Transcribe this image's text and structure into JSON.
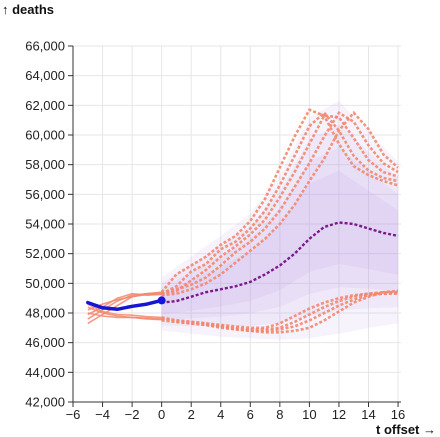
{
  "chart_data": {
    "type": "line",
    "ylabel": "↑ deaths",
    "xlabel": "t offset →",
    "xlim": [
      -6,
      16.2
    ],
    "ylim": [
      42000,
      66000
    ],
    "x_ticks": [
      -6,
      -4,
      -2,
      0,
      2,
      4,
      6,
      8,
      10,
      12,
      14,
      16
    ],
    "x_tick_labels": [
      "−6",
      "−4",
      "−2",
      "0",
      "2",
      "4",
      "6",
      "8",
      "10",
      "12",
      "14",
      "16"
    ],
    "y_ticks": [
      42000,
      44000,
      46000,
      48000,
      50000,
      52000,
      54000,
      56000,
      58000,
      60000,
      62000,
      64000,
      66000
    ],
    "y_tick_labels": [
      "42,000",
      "44,000",
      "46,000",
      "48,000",
      "50,000",
      "52,000",
      "54,000",
      "56,000",
      "58,000",
      "60,000",
      "62,000",
      "64,000",
      "66,000"
    ],
    "grid": true,
    "colors": {
      "observed": "#1515d6",
      "median": "#7a1a8c",
      "samples": "#f2876e",
      "band": "#b28de6"
    },
    "observed": {
      "x": [
        -5,
        -4,
        -3,
        -2,
        -1,
        0
      ],
      "y": [
        48700,
        48350,
        48250,
        48450,
        48600,
        48850
      ]
    },
    "history_samples": [
      {
        "x": [
          -5,
          -4,
          -3,
          -2,
          -1,
          0
        ],
        "y": [
          47300,
          47900,
          48500,
          49100,
          49300,
          49400
        ]
      },
      {
        "x": [
          -5,
          -4,
          -3,
          -2,
          -1,
          0
        ],
        "y": [
          47600,
          48200,
          48800,
          49200,
          49300,
          49350
        ]
      },
      {
        "x": [
          -5,
          -4,
          -3,
          -2,
          -1,
          0
        ],
        "y": [
          47900,
          48400,
          49000,
          49300,
          49200,
          49250
        ]
      },
      {
        "x": [
          -5,
          -4,
          -3,
          -2,
          -1,
          0
        ],
        "y": [
          48200,
          48600,
          48900,
          49100,
          49250,
          49300
        ]
      },
      {
        "x": [
          -5,
          -4,
          -3,
          -2,
          -1,
          0
        ],
        "y": [
          48000,
          47800,
          47700,
          47700,
          47600,
          47550
        ]
      },
      {
        "x": [
          -5,
          -4,
          -3,
          -2,
          -1,
          0
        ],
        "y": [
          48400,
          48000,
          47800,
          47700,
          47650,
          47600
        ]
      },
      {
        "x": [
          -5,
          -4,
          -3,
          -2,
          -1,
          0
        ],
        "y": [
          48600,
          48100,
          47900,
          47850,
          47750,
          47700
        ]
      }
    ],
    "median": {
      "x": [
        0,
        1,
        2,
        3,
        4,
        5,
        6,
        7,
        8,
        9,
        10,
        11,
        12,
        13,
        14,
        15,
        16
      ],
      "y": [
        48700,
        48800,
        49100,
        49400,
        49600,
        49800,
        50100,
        50600,
        51200,
        52000,
        53000,
        53800,
        54100,
        54000,
        53700,
        53400,
        53200
      ]
    },
    "forecast_samples": [
      {
        "x": [
          0,
          1,
          2,
          3,
          4,
          5,
          6,
          7,
          8,
          9,
          10,
          11,
          12,
          13,
          14,
          15,
          16
        ],
        "y": [
          49400,
          50600,
          51200,
          51800,
          52600,
          53200,
          54200,
          55700,
          57800,
          59900,
          61700,
          61300,
          59400,
          57900,
          57300,
          56900,
          56600
        ]
      },
      {
        "x": [
          0,
          1,
          2,
          3,
          4,
          5,
          6,
          7,
          8,
          9,
          10,
          11,
          12,
          13,
          14,
          15,
          16
        ],
        "y": [
          49300,
          49800,
          50800,
          51300,
          52300,
          52800,
          53700,
          54900,
          56600,
          58600,
          60600,
          61500,
          60300,
          58600,
          57600,
          57100,
          56900
        ]
      },
      {
        "x": [
          0,
          1,
          2,
          3,
          4,
          5,
          6,
          7,
          8,
          9,
          10,
          11,
          12,
          13,
          14,
          15,
          16
        ],
        "y": [
          49200,
          49500,
          50200,
          50900,
          51800,
          52500,
          53300,
          54300,
          55800,
          57500,
          59400,
          61300,
          61200,
          59800,
          58300,
          57500,
          57200
        ]
      },
      {
        "x": [
          0,
          1,
          2,
          3,
          4,
          5,
          6,
          7,
          8,
          9,
          10,
          11,
          12,
          13,
          14,
          15,
          16
        ],
        "y": [
          49300,
          49600,
          49900,
          50400,
          51200,
          52100,
          52800,
          53700,
          54900,
          56500,
          58100,
          59900,
          61500,
          60900,
          59300,
          58100,
          57500
        ]
      },
      {
        "x": [
          0,
          1,
          2,
          3,
          4,
          5,
          6,
          7,
          8,
          9,
          10,
          11,
          12,
          13,
          14,
          15,
          16
        ],
        "y": [
          49200,
          49300,
          49600,
          50000,
          50600,
          51400,
          52200,
          53000,
          54000,
          55300,
          56900,
          58400,
          60300,
          61500,
          60400,
          58700,
          57800
        ]
      },
      {
        "x": [
          0,
          1,
          2,
          3,
          4,
          5,
          6,
          7,
          8,
          9,
          10,
          11,
          12,
          13,
          14,
          15,
          16
        ],
        "y": [
          47600,
          47500,
          47400,
          47300,
          47200,
          47100,
          47000,
          47000,
          47300,
          47800,
          48300,
          48700,
          49000,
          49200,
          49300,
          49400,
          49400
        ]
      },
      {
        "x": [
          0,
          1,
          2,
          3,
          4,
          5,
          6,
          7,
          8,
          9,
          10,
          11,
          12,
          13,
          14,
          15,
          16
        ],
        "y": [
          47700,
          47500,
          47400,
          47300,
          47100,
          47000,
          46900,
          46900,
          47000,
          47400,
          47900,
          48400,
          48800,
          49100,
          49300,
          49300,
          49300
        ]
      },
      {
        "x": [
          0,
          1,
          2,
          3,
          4,
          5,
          6,
          7,
          8,
          9,
          10,
          11,
          12,
          13,
          14,
          15,
          16
        ],
        "y": [
          47600,
          47400,
          47300,
          47200,
          47100,
          46900,
          46800,
          46800,
          46900,
          47100,
          47500,
          48000,
          48500,
          48900,
          49200,
          49300,
          49400
        ]
      },
      {
        "x": [
          0,
          1,
          2,
          3,
          4,
          5,
          6,
          7,
          8,
          9,
          10,
          11,
          12,
          13,
          14,
          15,
          16
        ],
        "y": [
          47500,
          47400,
          47300,
          47200,
          47000,
          46900,
          46800,
          46700,
          46700,
          46800,
          47000,
          47500,
          48100,
          48700,
          49100,
          49400,
          49500
        ]
      }
    ],
    "band": {
      "x": [
        0,
        2,
        4,
        6,
        8,
        10,
        12,
        14,
        16
      ],
      "low": [
        46800,
        46600,
        46400,
        46300,
        46200,
        46300,
        46600,
        47000,
        47300
      ],
      "high": [
        50400,
        51800,
        53200,
        54700,
        57300,
        61200,
        62300,
        60200,
        58200
      ]
    }
  }
}
